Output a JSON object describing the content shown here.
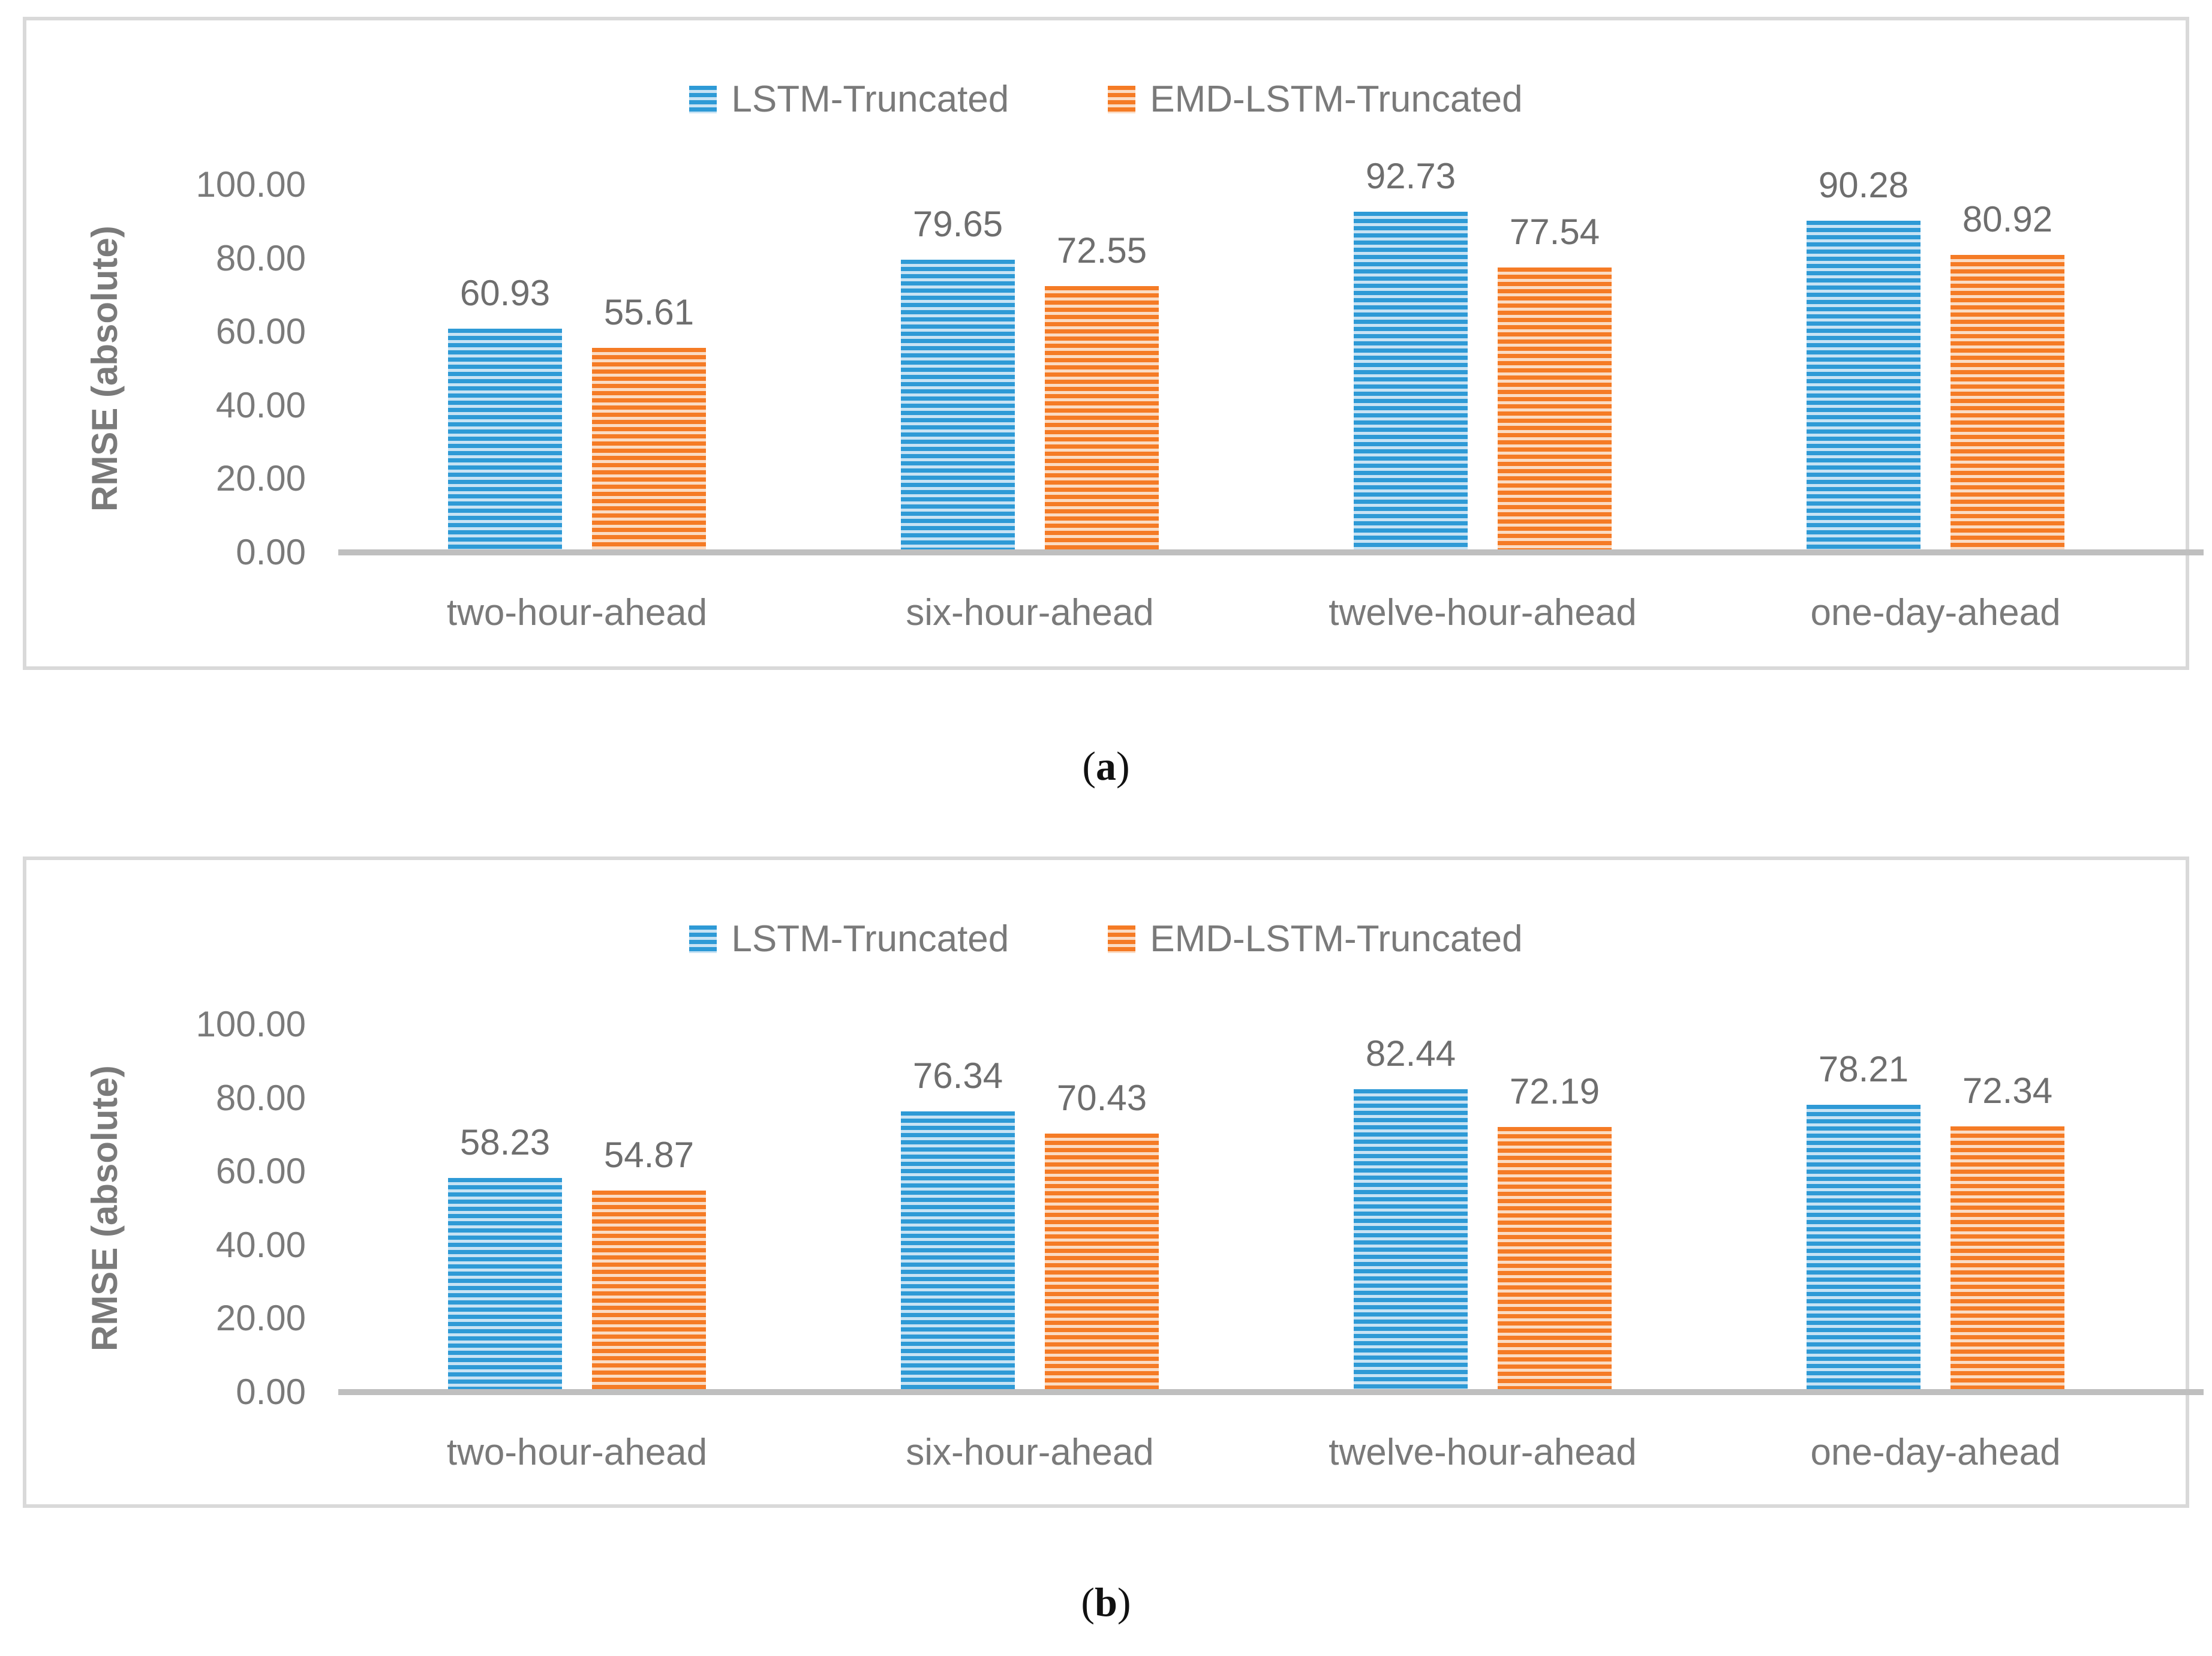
{
  "colors": {
    "series1_dark": "#2e9ad6",
    "series1_light": "#c8e3f4",
    "series2_dark": "#f57b25",
    "series2_light": "#fbdcc4",
    "axis_line": "#bfbfbf",
    "panel_border": "#d9d9d9",
    "text_gray": "#7a7a7a",
    "data_label_gray": "#6e6e6e"
  },
  "captions": [
    {
      "open": "(",
      "letter": "a",
      "close": ")"
    },
    {
      "open": "(",
      "letter": "b",
      "close": ")"
    }
  ],
  "chart_data": [
    {
      "type": "bar",
      "panel": "a",
      "categories": [
        "two-hour-ahead",
        "six-hour-ahead",
        "twelve-hour-ahead",
        "one-day-ahead"
      ],
      "series": [
        {
          "name": "LSTM-Truncated",
          "color": "#2e9ad6",
          "color_light": "#c8e3f4",
          "values": [
            60.93,
            79.65,
            92.73,
            90.28
          ]
        },
        {
          "name": "EMD-LSTM-Truncated",
          "color": "#f57b25",
          "color_light": "#fbdcc4",
          "values": [
            55.61,
            72.55,
            77.54,
            80.92
          ]
        }
      ],
      "ylabel": "RMSE (absolute)",
      "yticks": [
        "100.00",
        "80.00",
        "60.00",
        "40.00",
        "20.00",
        "0.00"
      ],
      "ylim": [
        0,
        100
      ],
      "grid": false,
      "legend_position": "top",
      "bar_pattern": "horizontal-stripes"
    },
    {
      "type": "bar",
      "panel": "b",
      "categories": [
        "two-hour-ahead",
        "six-hour-ahead",
        "twelve-hour-ahead",
        "one-day-ahead"
      ],
      "series": [
        {
          "name": "LSTM-Truncated",
          "color": "#2e9ad6",
          "color_light": "#c8e3f4",
          "values": [
            58.23,
            76.34,
            82.44,
            78.21
          ]
        },
        {
          "name": "EMD-LSTM-Truncated",
          "color": "#f57b25",
          "color_light": "#fbdcc4",
          "values": [
            54.87,
            70.43,
            72.19,
            72.34
          ]
        }
      ],
      "ylabel": "RMSE (absolute)",
      "yticks": [
        "100.00",
        "80.00",
        "60.00",
        "40.00",
        "20.00",
        "0.00"
      ],
      "ylim": [
        0,
        100
      ],
      "grid": false,
      "legend_position": "top",
      "bar_pattern": "horizontal-stripes"
    }
  ]
}
